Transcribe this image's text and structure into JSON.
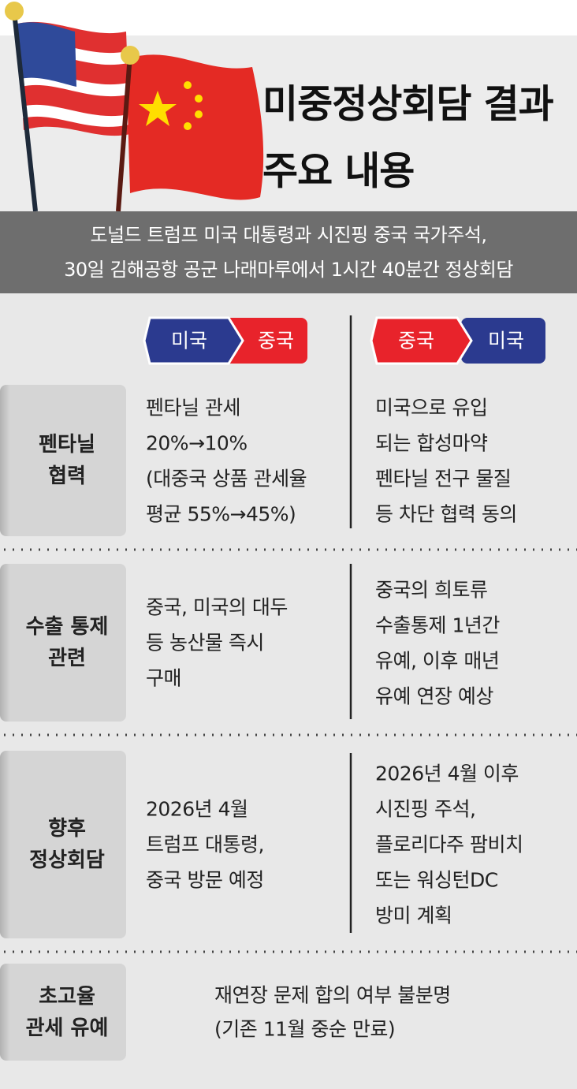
{
  "header": {
    "title_lines": [
      "미중정상회담 결과",
      "주요 내용"
    ],
    "subtitle_lines": [
      "도널드 트럼프 미국 대통령과 시진핑 중국 국가주석,",
      "30일 김해공항 공군 나래마루에서 1시간 40분간 정상회담"
    ]
  },
  "columns": {
    "left": {
      "from": "미국",
      "to": "중국"
    },
    "right": {
      "from": "중국",
      "to": "미국"
    }
  },
  "rows": [
    {
      "label": [
        "펜타닐",
        "협력"
      ],
      "left": [
        "펜타닐 관세",
        "20%→10%",
        "(대중국 상품 관세율",
        "평균 55%→45%)"
      ],
      "right": [
        "미국으로 유입",
        "되는 합성마약",
        "펜타닐 전구 물질",
        "등 차단 협력 동의"
      ]
    },
    {
      "label": [
        "수출 통제",
        "관련"
      ],
      "left": [
        "중국, 미국의 대두",
        "등 농산물 즉시",
        "구매"
      ],
      "right": [
        "중국의 희토류",
        "수출통제 1년간",
        "유예, 이후 매년",
        "유예 연장 예상"
      ]
    },
    {
      "label": [
        "향후",
        "정상회담"
      ],
      "left": [
        "2026년 4월",
        "트럼프 대통령,",
        "중국 방문 예정"
      ],
      "right": [
        "2026년 4월 이후",
        "시진핑 주석,",
        "플로리다주 팜비치",
        "또는 워싱턴DC",
        "방미 계획"
      ]
    },
    {
      "label": [
        "초고율",
        "관세 유예"
      ],
      "both": [
        "재연장 문제 합의 여부 불분명",
        "(기존 11월 중순 만료)"
      ]
    }
  ]
}
